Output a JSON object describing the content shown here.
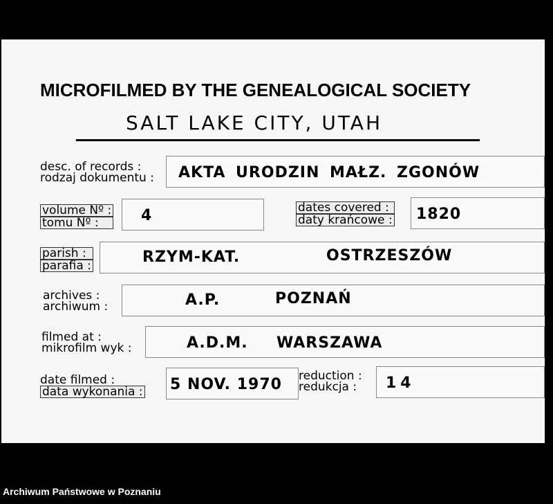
{
  "header": {
    "title": "MICROFILMED BY THE GENEALOGICAL SOCIETY",
    "subtitle": "SALT LAKE CITY, UTAH"
  },
  "fields": {
    "desc": {
      "label_en": "desc. of records :",
      "label_pl": "rodzaj dokumentu :",
      "value": "AKTA URODZIN MAŁZ. ZGONÓW"
    },
    "volume": {
      "label_en": "volume Nº :",
      "label_pl": "tomu Nº :",
      "value": "4"
    },
    "dates": {
      "label_en": "dates covered :",
      "label_pl": "daty krańcowe :",
      "value": "1820"
    },
    "parish": {
      "label_en": "parish :",
      "label_pl": "parafia :",
      "value": "RZYM-KAT.",
      "value2": "OSTRZESZÓW"
    },
    "archives": {
      "label_en": "archives :",
      "label_pl": "archiwum :",
      "value": "A.P.",
      "value2": "POZNAŃ"
    },
    "filmed_at": {
      "label_en": "filmed at :",
      "label_pl": "mikrofilm wyk :",
      "value": "A.D.M.",
      "value2": "WARSZAWA"
    },
    "date_filmed": {
      "label_en": "date filmed :",
      "label_pl": "data wykonania :",
      "value": "5 NOV. 1970"
    },
    "reduction": {
      "label_en": "reduction :",
      "label_pl": "redukcja :",
      "value": "14"
    }
  },
  "footer": {
    "source": "Archiwum Państwowe w Poznaniu"
  }
}
